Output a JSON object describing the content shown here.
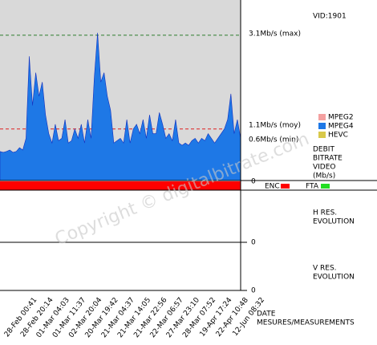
{
  "chart_data": {
    "type": "area",
    "vid": "VID:1901",
    "watermark": "Copyright © digitalbitrate.com",
    "axis_title": [
      "DEBIT",
      "BITRATE",
      "VIDEO",
      "(Mb/s)"
    ],
    "legend": [
      {
        "name": "MPEG2",
        "color": "#f4a0a0"
      },
      {
        "name": "MPEG4",
        "color": "#1e78e6"
      },
      {
        "name": "HEVC",
        "color": "#d8c84a"
      }
    ],
    "series": [
      {
        "name": "MPEG4",
        "color": "#1e78e6",
        "values": [
          0.62,
          0.6,
          0.62,
          0.65,
          0.6,
          0.62,
          0.7,
          0.65,
          0.9,
          2.65,
          1.6,
          2.3,
          1.8,
          2.1,
          1.4,
          1.0,
          0.8,
          1.2,
          0.85,
          0.9,
          1.3,
          0.8,
          0.85,
          1.1,
          0.9,
          1.2,
          0.8,
          1.3,
          0.9,
          2.2,
          3.15,
          2.1,
          2.3,
          1.8,
          1.5,
          0.8,
          0.85,
          0.9,
          0.8,
          1.3,
          0.8,
          1.1,
          1.2,
          1.0,
          1.3,
          0.9,
          1.4,
          1.0,
          1.0,
          1.45,
          1.2,
          0.9,
          1.0,
          0.85,
          1.3,
          0.8,
          0.75,
          0.8,
          0.75,
          0.85,
          0.9,
          0.8,
          0.9,
          0.85,
          1.0,
          0.9,
          0.8,
          0.9,
          1.0,
          1.1,
          1.3,
          1.85,
          1.0,
          1.3,
          0.9
        ]
      }
    ],
    "categories": [
      "28-Feb 00:41",
      null,
      null,
      null,
      null,
      "28-Feb 20:14",
      null,
      null,
      null,
      null,
      "01-Mar 04:03",
      null,
      null,
      null,
      null,
      "01-Mar 11:37",
      null,
      null,
      null,
      null,
      "02-Mar 20:04",
      null,
      null,
      null,
      null,
      "20-Mar 19:42",
      null,
      null,
      null,
      null,
      "21-Mar 04:37",
      null,
      null,
      null,
      null,
      "21-Mar 14:05",
      null,
      null,
      null,
      null,
      "21-Mar 22:56",
      null,
      null,
      null,
      null,
      "22-Mar 06:57",
      null,
      null,
      null,
      null,
      "27-Mar 23:10",
      null,
      null,
      null,
      null,
      "28-Mar 07:52",
      null,
      null,
      null,
      null,
      "19-Apr 17:24",
      null,
      null,
      null,
      null,
      "22-Apr 10:48",
      null,
      null,
      null,
      null,
      "12-Jun 08:32",
      null,
      null,
      null,
      null
    ],
    "ref_lines": [
      {
        "value": 3.1,
        "label": "3.1Mb/s (max)",
        "color": "#2e7d2e"
      },
      {
        "value": 1.1,
        "label": "1.1Mb/s (moy)",
        "color": "#e02020"
      },
      {
        "value": 0.6,
        "label": "0.6Mb/s (min)",
        "color": "#3050e0"
      }
    ],
    "ylim": [
      0,
      3.85
    ],
    "yticks": [
      0
    ],
    "background": "#d9d9d9",
    "status": [
      {
        "name": "ENC",
        "color": "#ff0000"
      },
      {
        "name": "FTA",
        "color": "#22dd22"
      }
    ],
    "h_res": {
      "label": [
        "H RES.",
        "EVOLUTION"
      ],
      "yticks": [
        0
      ]
    },
    "v_res": {
      "label": [
        "V RES.",
        "EVOLUTION"
      ],
      "yticks": [
        0
      ]
    },
    "xlabel": [
      "DATE",
      "MESURES/MEASUREMENTS"
    ]
  }
}
